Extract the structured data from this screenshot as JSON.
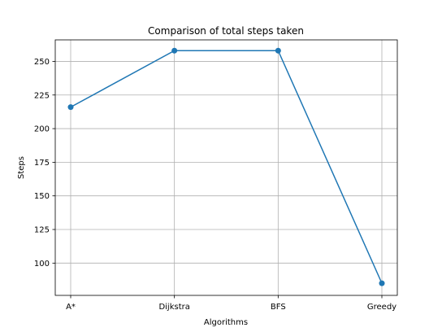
{
  "chart_data": {
    "type": "line",
    "title": "Comparison of total steps taken",
    "xlabel": "Algorithms",
    "ylabel": "Steps",
    "categories": [
      "A*",
      "Dijkstra",
      "BFS",
      "Greedy"
    ],
    "series": [
      {
        "values": [
          216,
          258,
          258,
          85
        ]
      }
    ],
    "ylim": [
      76,
      266
    ],
    "yticks": [
      100,
      125,
      150,
      175,
      200,
      225,
      250
    ],
    "grid": true,
    "marker": "circle",
    "colors": {
      "line": "#1f77b4",
      "grid": "#b0b0b0",
      "axis": "#000000"
    }
  }
}
